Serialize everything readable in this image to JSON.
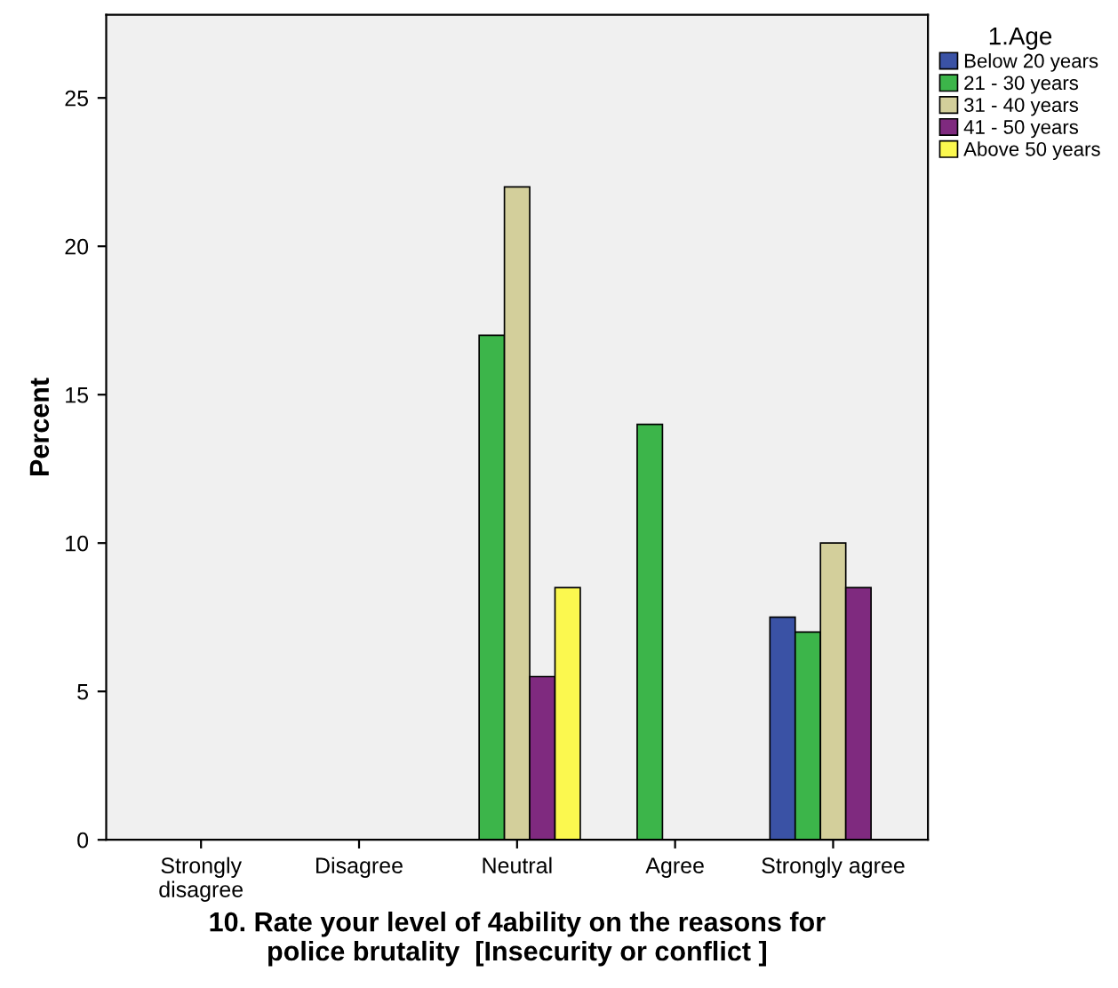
{
  "chart_data": {
    "type": "bar",
    "xlabel": "10. Rate your level of 4ability on the reasons for\npolice brutality  [Insecurity or conflict ]",
    "ylabel": "Percent",
    "legend_title": "1.Age",
    "legend": "right",
    "grid": false,
    "categories": [
      "Strongly\ndisagree",
      "Disagree",
      "Neutral",
      "Agree",
      "Strongly agree"
    ],
    "ylim": [
      0,
      27.8
    ],
    "yticks": [
      0,
      5,
      10,
      15,
      20,
      25
    ],
    "series": [
      {
        "name": "Below 20 years",
        "color": "#3a52a5",
        "values": [
          0,
          0,
          0,
          0,
          7.5
        ]
      },
      {
        "name": "21 - 30 years",
        "color": "#3cb54a",
        "values": [
          0,
          0,
          17,
          14,
          7
        ]
      },
      {
        "name": "31 - 40 years",
        "color": "#d3cf9b",
        "values": [
          0,
          0,
          22,
          0,
          10
        ]
      },
      {
        "name": "41 - 50 years",
        "color": "#7f2a7f",
        "values": [
          0,
          0,
          5.5,
          0,
          8.5
        ]
      },
      {
        "name": "Above 50 years",
        "color": "#fbf84f",
        "values": [
          0,
          0,
          8.5,
          0,
          0
        ]
      }
    ]
  }
}
